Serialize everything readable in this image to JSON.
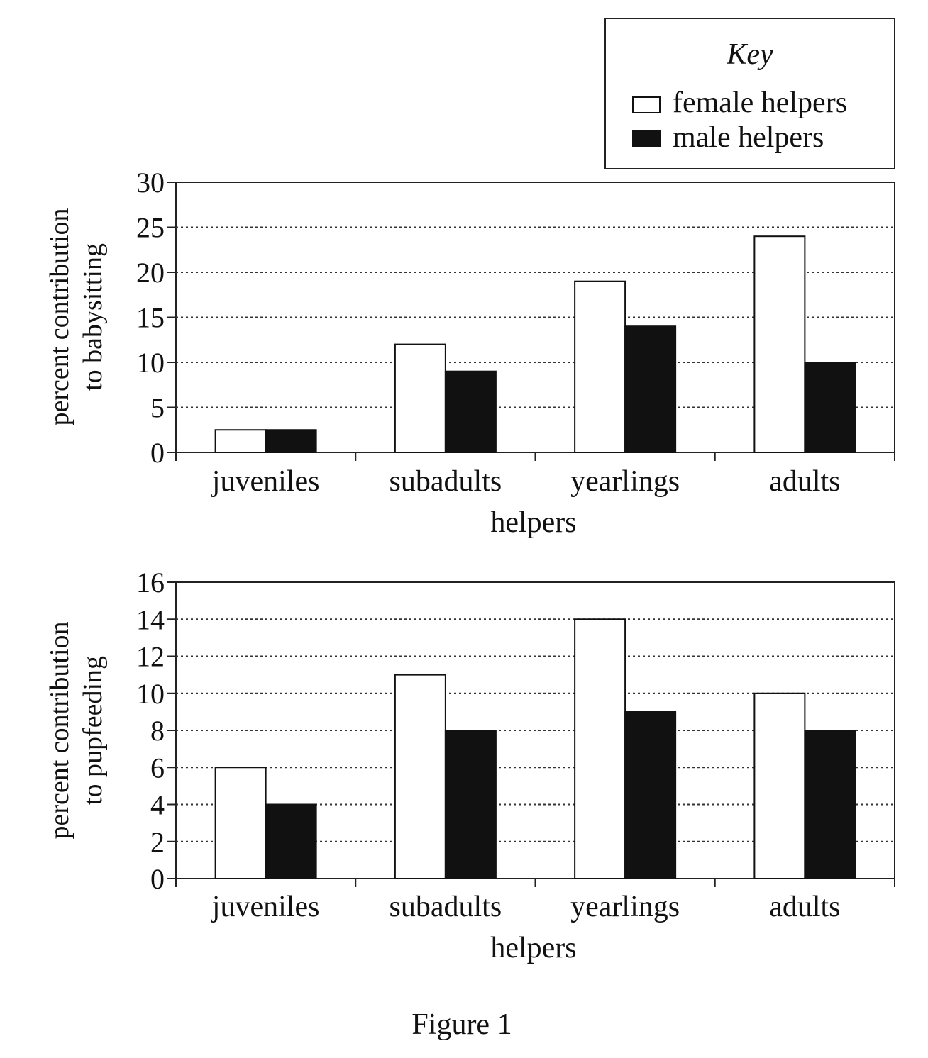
{
  "legend": {
    "title": "Key",
    "entries": [
      {
        "label": "female helpers",
        "color": "#ffffff"
      },
      {
        "label": "male helpers",
        "color": "#111111"
      }
    ]
  },
  "caption": "Figure 1",
  "chart_data": [
    {
      "type": "bar",
      "categories": [
        "juveniles",
        "subadults",
        "yearlings",
        "adults"
      ],
      "series": [
        {
          "name": "female helpers",
          "values": [
            2.5,
            12,
            19,
            24
          ]
        },
        {
          "name": "male helpers",
          "values": [
            2.5,
            9,
            14,
            10
          ]
        }
      ],
      "xlabel": "helpers",
      "ylabel_lines": [
        "percent contribution",
        "to babysitting"
      ],
      "ylim": [
        0,
        30
      ],
      "yticks": [
        0,
        5,
        10,
        15,
        20,
        25,
        30
      ],
      "grid": true
    },
    {
      "type": "bar",
      "categories": [
        "juveniles",
        "subadults",
        "yearlings",
        "adults"
      ],
      "series": [
        {
          "name": "female helpers",
          "values": [
            6,
            11,
            14,
            10
          ]
        },
        {
          "name": "male helpers",
          "values": [
            4,
            8,
            9,
            8
          ]
        }
      ],
      "xlabel": "helpers",
      "ylabel_lines": [
        "percent contribution",
        "to pupfeeding"
      ],
      "ylim": [
        0,
        16
      ],
      "yticks": [
        0,
        2,
        4,
        6,
        8,
        10,
        12,
        14,
        16
      ],
      "grid": true
    }
  ]
}
